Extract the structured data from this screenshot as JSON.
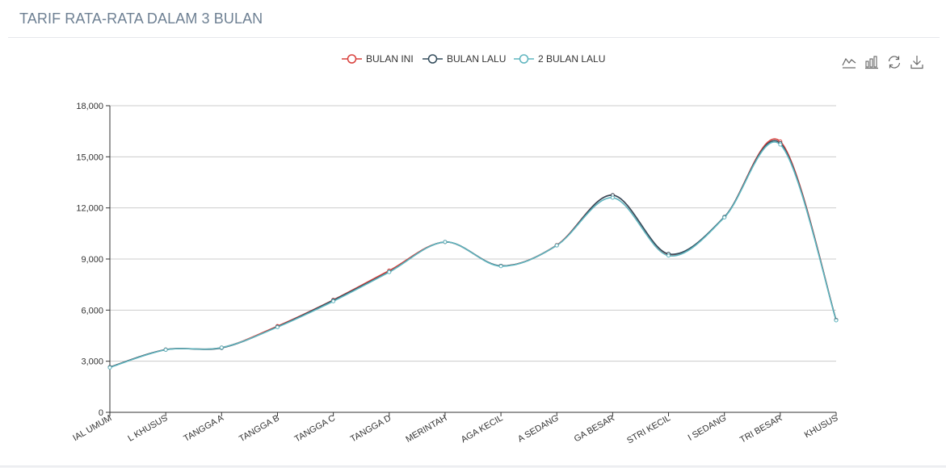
{
  "panel": {
    "title": "TARIF RATA-RATA DALAM 3 BULAN"
  },
  "toolbox": {
    "icons": [
      "line-chart-icon",
      "bar-chart-icon",
      "refresh-icon",
      "download-icon"
    ]
  },
  "colors": {
    "bulan_ini": "#d9403c",
    "bulan_lalu": "#334c5c",
    "dua_bulan_lalu": "#5fb5bf",
    "grid": "#cccccc",
    "axis": "#333333"
  },
  "chart_data": {
    "type": "line",
    "smooth": true,
    "title": "",
    "xlabel": "",
    "ylabel": "",
    "ylim": [
      0,
      18000
    ],
    "yticks": [
      "0",
      "3,000",
      "6,000",
      "9,000",
      "12,000",
      "15,000",
      "18,000"
    ],
    "grid": true,
    "legend_position": "top-center",
    "categories": [
      "SOSIAL UMUM",
      "SOSIAL KHUSUS",
      "RUMAH TANGGA A",
      "RUMAH TANGGA B",
      "RUMAH TANGGA C",
      "RUMAH TANGGA D",
      "INSTANSI PEMERINTAH",
      "NIAGA KECIL",
      "NIAGA SEDANG",
      "NIAGA BESAR",
      "INDUSTRI KECIL",
      "INDUSTRI SEDANG",
      "INDUSTRI BESAR",
      "KHUSUS"
    ],
    "category_labels_visible": [
      "IAL UMUM",
      "L KHUSUS",
      "TANGGA A",
      "TANGGA B",
      "TANGGA C",
      "TANGGA D",
      "MERINTAH",
      "AGA KECIL",
      "A SEDANG",
      "GA BESAR",
      "STRI KECIL",
      "I SEDANG",
      "TRI BESAR",
      "KHUSUS"
    ],
    "series": [
      {
        "name": "BULAN INI",
        "values": [
          2650,
          3680,
          3800,
          5060,
          6600,
          8320,
          10000,
          8600,
          9820,
          12750,
          9280,
          11460,
          15900,
          5420
        ]
      },
      {
        "name": "BULAN LALU",
        "values": [
          2650,
          3680,
          3780,
          5020,
          6580,
          8250,
          10000,
          8600,
          9800,
          12750,
          9300,
          11470,
          15800,
          5420
        ]
      },
      {
        "name": "2 BULAN LALU",
        "values": [
          2630,
          3670,
          3800,
          5000,
          6520,
          8230,
          10000,
          8580,
          9800,
          12600,
          9200,
          11440,
          15720,
          5400
        ]
      }
    ]
  }
}
